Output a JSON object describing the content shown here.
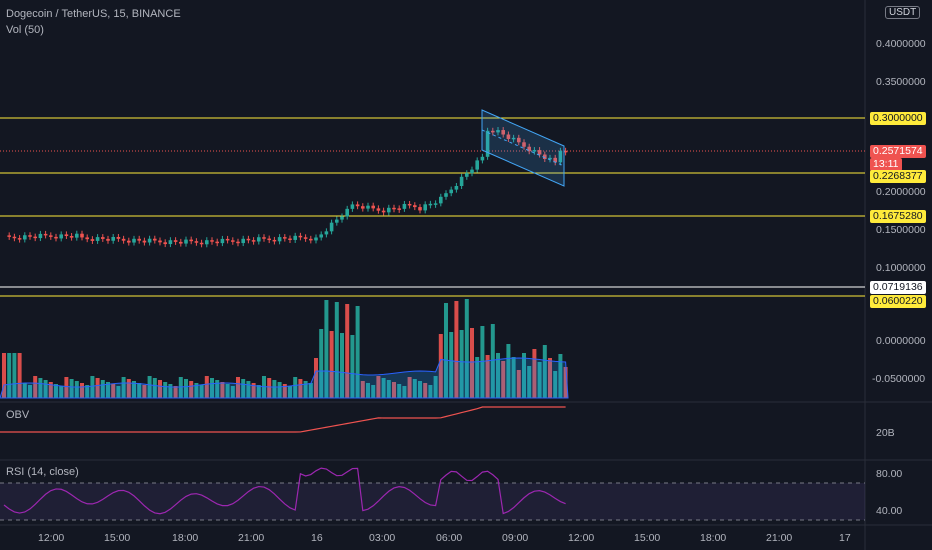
{
  "header": {
    "symbol_title": "Dogecoin / TetherUS, 15, BINANCE",
    "volume_legend": "Vol (50)",
    "currency_badge": "USDT"
  },
  "price_axis": {
    "ticks": [
      "0.4000000",
      "0.3500000",
      "0.2000000",
      "0.1500000",
      "0.1000000",
      "0.0000000",
      "-0.0500000"
    ],
    "current_price": "0.2571574",
    "countdown": "13:11"
  },
  "price_levels": [
    {
      "label": "0.3000000",
      "color": "#ffeb3b"
    },
    {
      "label": "0.2268377",
      "color": "#ffeb3b"
    },
    {
      "label": "0.1675280",
      "color": "#ffeb3b"
    },
    {
      "label": "0.0719136",
      "color": "#ffffff"
    },
    {
      "label": "0.0600220",
      "color": "#ffeb3b"
    }
  ],
  "obv_panel": {
    "legend": "OBV",
    "axis_label": "20B"
  },
  "rsi_panel": {
    "legend": "RSI (14, close)",
    "axis_labels": [
      "80.00",
      "40.00"
    ]
  },
  "time_axis": {
    "labels": [
      "12:00",
      "15:00",
      "18:00",
      "21:00",
      "16",
      "03:00",
      "06:00",
      "09:00",
      "12:00",
      "15:00",
      "18:00",
      "21:00",
      "17"
    ]
  },
  "colors": {
    "background": "#131722",
    "up": "#26a69a",
    "down": "#ef5350",
    "level_line": "#ffeb3b",
    "obv_line": "#ef5350",
    "rsi_line": "#9c27b0",
    "channel": "#42a5f5"
  }
}
